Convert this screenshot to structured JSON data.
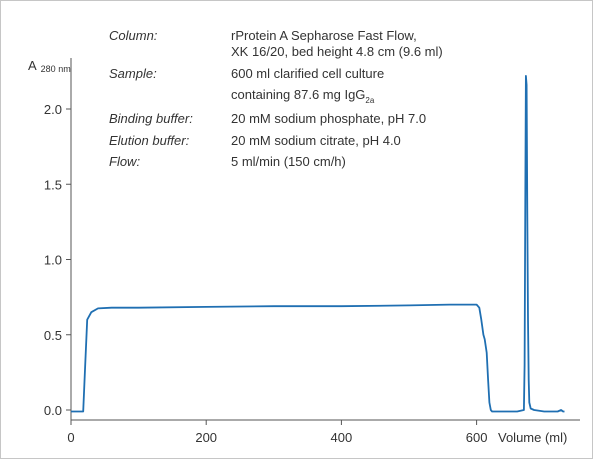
{
  "chart_data": {
    "type": "line",
    "ylabel": "A",
    "ylabel_sub": "280 nm",
    "xlabel": "Volume (ml)",
    "xlim": [
      0,
      730
    ],
    "ylim": [
      -0.03,
      2.35
    ],
    "x_ticks": [
      "0",
      "200",
      "400",
      "600"
    ],
    "y_ticks": [
      "0.0",
      "0.5",
      "1.0",
      "1.5",
      "2.0"
    ],
    "line_color": "#1f6fb2",
    "grid": false,
    "annotations": [
      {
        "key": "Column:",
        "lines": [
          "rProtein A Sepharose Fast Flow,",
          "XK 16/20, bed height 4.8 cm (9.6 ml)"
        ]
      },
      {
        "key": "Sample:",
        "lines": [
          "600 ml clarified cell culture"
        ],
        "line2_prefix": "containing 87.6 mg IgG",
        "line2_subscript": "2a"
      },
      {
        "key": "Binding buffer:",
        "lines": [
          "20 mM sodium phosphate, pH 7.0"
        ]
      },
      {
        "key": "Elution buffer:",
        "lines": [
          "20 mM sodium citrate, pH 4.0"
        ]
      },
      {
        "key": "Flow:",
        "lines": [
          "5 ml/min (150 cm/h)"
        ]
      }
    ],
    "series": [
      {
        "x": [
          0,
          10,
          18,
          21,
          24,
          30,
          40,
          60,
          100,
          200,
          300,
          400,
          500,
          560,
          600,
          604,
          607,
          610,
          612,
          615,
          617,
          619,
          621,
          623,
          626,
          630,
          640,
          660,
          670,
          671,
          672,
          673,
          674,
          675,
          676,
          677,
          678,
          680,
          685,
          700,
          720,
          725,
          728,
          730
        ],
        "y": [
          -0.01,
          -0.01,
          -0.01,
          0.3,
          0.6,
          0.65,
          0.675,
          0.68,
          0.68,
          0.685,
          0.69,
          0.69,
          0.695,
          0.7,
          0.7,
          0.68,
          0.6,
          0.5,
          0.47,
          0.38,
          0.2,
          0.05,
          0.0,
          -0.01,
          -0.01,
          -0.01,
          -0.01,
          -0.01,
          0.0,
          0.3,
          1.4,
          2.22,
          2.16,
          1.3,
          0.6,
          0.2,
          0.05,
          0.01,
          0.0,
          -0.01,
          -0.01,
          0.0,
          -0.01,
          -0.01
        ]
      }
    ]
  }
}
